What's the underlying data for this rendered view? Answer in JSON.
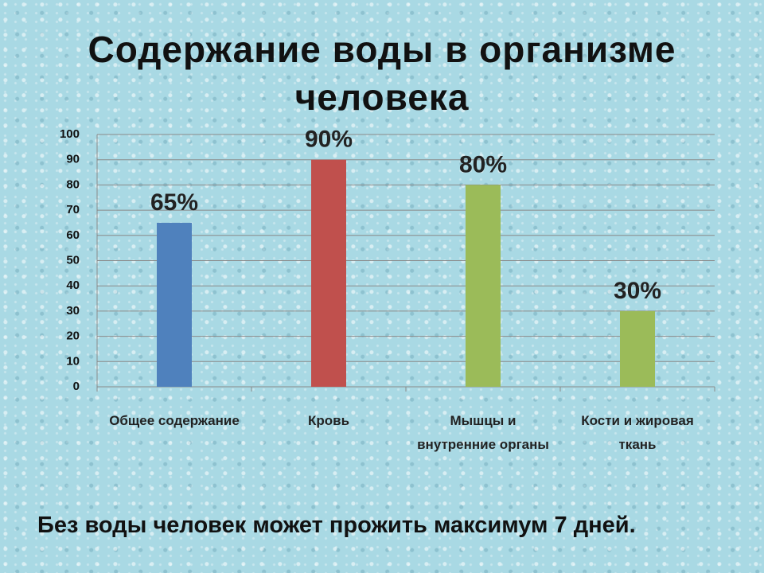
{
  "chart_data": {
    "type": "bar",
    "title": "Содержание воды в организме человека",
    "categories": [
      "Общее содержание",
      "Кровь",
      "Мышцы и внутренние органы",
      "Кости и жировая ткань"
    ],
    "values": [
      65,
      90,
      80,
      30
    ],
    "value_labels": [
      "65%",
      "90%",
      "80%",
      "30%"
    ],
    "colors": [
      "#4f81bd",
      "#c0504d",
      "#9bbb59",
      "#9bbb59"
    ],
    "ylim": [
      0,
      100
    ],
    "yticks": [
      0,
      10,
      20,
      30,
      40,
      50,
      60,
      70,
      80,
      90,
      100
    ],
    "grid": true,
    "annotation": "Без воды человек может прожить максимум 7 дней."
  }
}
